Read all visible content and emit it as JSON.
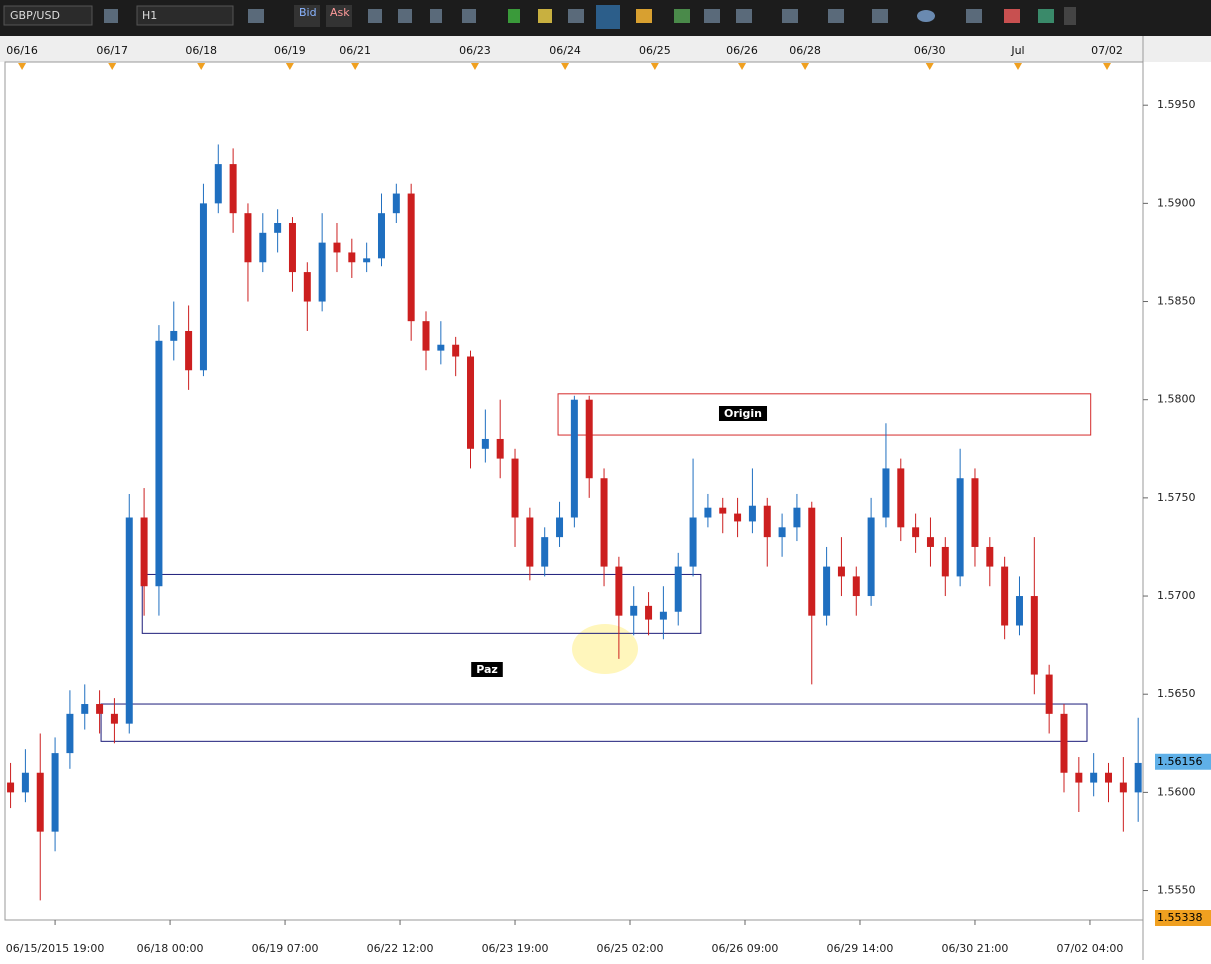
{
  "toolbar": {
    "symbol": "GBP/USD",
    "timeframe": "H1",
    "bid": "Bid",
    "ask": "Ask"
  },
  "chart_data": {
    "type": "candlestick",
    "up_color": "#1f6fc0",
    "down_color": "#cc1f1f",
    "xlim": [
      -13.5,
      293.3
    ],
    "ylim": [
      1.5535,
      1.5972
    ],
    "yticks": [
      {
        "value": 1.555,
        "label": "1.5550"
      },
      {
        "value": 1.56,
        "label": "1.5600"
      },
      {
        "value": 1.565,
        "label": "1.5650"
      },
      {
        "value": 1.57,
        "label": "1.5700"
      },
      {
        "value": 1.575,
        "label": "1.5750"
      },
      {
        "value": 1.58,
        "label": "1.5800"
      },
      {
        "value": 1.585,
        "label": "1.5850"
      },
      {
        "value": 1.59,
        "label": "1.5900"
      },
      {
        "value": 1.595,
        "label": "1.5950"
      }
    ],
    "xticks": [
      {
        "value": 0,
        "label": "06/15/2015 19:00"
      },
      {
        "value": 31,
        "label": "06/18 00:00"
      },
      {
        "value": 62,
        "label": "06/19 07:00"
      },
      {
        "value": 93,
        "label": "06/22 12:00"
      },
      {
        "value": 124,
        "label": "06/23 19:00"
      },
      {
        "value": 155,
        "label": "06/25 02:00"
      },
      {
        "value": 186,
        "label": "06/26 09:00"
      },
      {
        "value": 217,
        "label": "06/29 14:00"
      },
      {
        "value": 248,
        "label": "06/30 21:00"
      },
      {
        "value": 279,
        "label": "07/02 04:00"
      }
    ],
    "day_ticks": [
      {
        "value": -8.9,
        "label": "06/16"
      },
      {
        "value": 15.4,
        "label": "06/17"
      },
      {
        "value": 39.4,
        "label": "06/18"
      },
      {
        "value": 63.3,
        "label": "06/19"
      },
      {
        "value": 80.9,
        "label": "06/21"
      },
      {
        "value": 113.2,
        "label": "06/23"
      },
      {
        "value": 137.5,
        "label": "06/24"
      },
      {
        "value": 161.7,
        "label": "06/25"
      },
      {
        "value": 185.2,
        "label": "06/26"
      },
      {
        "value": 202.2,
        "label": "06/28"
      },
      {
        "value": 235.8,
        "label": "06/30"
      },
      {
        "value": 259.6,
        "label": "Jul"
      },
      {
        "value": 283.6,
        "label": "07/02"
      }
    ],
    "x": [
      -12,
      -8,
      -4,
      0,
      4,
      8,
      12,
      16,
      20,
      24,
      28,
      32,
      36,
      40,
      44,
      48,
      52,
      56,
      60,
      64,
      68,
      72,
      76,
      80,
      84,
      88,
      92,
      96,
      100,
      104,
      108,
      112,
      116,
      120,
      124,
      128,
      132,
      136,
      140,
      144,
      148,
      152,
      156,
      160,
      164,
      168,
      172,
      176,
      180,
      184,
      188,
      192,
      196,
      200,
      204,
      208,
      212,
      216,
      220,
      224,
      228,
      232,
      236,
      240,
      244,
      248,
      252,
      256,
      260,
      264,
      268,
      272,
      276,
      280,
      284,
      288,
      292
    ],
    "open": [
      1.5605,
      1.56,
      1.561,
      1.558,
      1.562,
      1.564,
      1.5645,
      1.564,
      1.5635,
      1.574,
      1.5705,
      1.583,
      1.5835,
      1.5815,
      1.59,
      1.592,
      1.5895,
      1.587,
      1.5885,
      1.589,
      1.5865,
      1.585,
      1.588,
      1.5875,
      1.587,
      1.5872,
      1.5895,
      1.5905,
      1.584,
      1.5825,
      1.5828,
      1.5822,
      1.5775,
      1.578,
      1.577,
      1.574,
      1.5715,
      1.573,
      1.574,
      1.58,
      1.576,
      1.5715,
      1.569,
      1.5695,
      1.5688,
      1.5692,
      1.5715,
      1.574,
      1.5745,
      1.5742,
      1.5738,
      1.5746,
      1.573,
      1.5735,
      1.5745,
      1.569,
      1.5715,
      1.571,
      1.57,
      1.574,
      1.5765,
      1.5735,
      1.573,
      1.5725,
      1.571,
      1.576,
      1.5725,
      1.5715,
      1.5685,
      1.57,
      1.566,
      1.564,
      1.561,
      1.5605,
      1.561,
      1.5605,
      1.56
    ],
    "high": [
      1.5615,
      1.5622,
      1.563,
      1.5628,
      1.5652,
      1.5655,
      1.5652,
      1.5648,
      1.5752,
      1.5755,
      1.5838,
      1.585,
      1.5848,
      1.591,
      1.593,
      1.5928,
      1.59,
      1.5895,
      1.5897,
      1.5893,
      1.587,
      1.5895,
      1.589,
      1.5882,
      1.588,
      1.5905,
      1.591,
      1.591,
      1.5845,
      1.584,
      1.5832,
      1.5825,
      1.5795,
      1.58,
      1.5775,
      1.5745,
      1.5735,
      1.5748,
      1.5802,
      1.5802,
      1.5765,
      1.572,
      1.5705,
      1.5702,
      1.5705,
      1.5722,
      1.577,
      1.5752,
      1.575,
      1.575,
      1.5765,
      1.575,
      1.5742,
      1.5752,
      1.5748,
      1.5725,
      1.573,
      1.5715,
      1.575,
      1.5788,
      1.577,
      1.5742,
      1.574,
      1.573,
      1.5775,
      1.5765,
      1.573,
      1.572,
      1.571,
      1.573,
      1.5665,
      1.5645,
      1.5618,
      1.562,
      1.5615,
      1.5618,
      1.5638
    ],
    "low": [
      1.5592,
      1.5595,
      1.5545,
      1.557,
      1.5612,
      1.5632,
      1.563,
      1.5625,
      1.563,
      1.569,
      1.569,
      1.582,
      1.5805,
      1.5812,
      1.5895,
      1.5885,
      1.585,
      1.5865,
      1.5875,
      1.5855,
      1.5835,
      1.5845,
      1.5865,
      1.5862,
      1.5865,
      1.5868,
      1.589,
      1.583,
      1.5815,
      1.5818,
      1.5812,
      1.5765,
      1.5768,
      1.576,
      1.5725,
      1.5708,
      1.571,
      1.5725,
      1.5735,
      1.575,
      1.5705,
      1.5668,
      1.568,
      1.568,
      1.5678,
      1.5685,
      1.571,
      1.5735,
      1.5732,
      1.573,
      1.5732,
      1.5715,
      1.572,
      1.5728,
      1.5655,
      1.5685,
      1.57,
      1.569,
      1.5695,
      1.5735,
      1.5728,
      1.5722,
      1.5715,
      1.57,
      1.5705,
      1.5715,
      1.5705,
      1.5678,
      1.568,
      1.565,
      1.563,
      1.56,
      1.559,
      1.5598,
      1.5595,
      1.558,
      1.5585
    ],
    "close": [
      1.56,
      1.561,
      1.558,
      1.562,
      1.564,
      1.5645,
      1.564,
      1.5635,
      1.574,
      1.5705,
      1.583,
      1.5835,
      1.5815,
      1.59,
      1.592,
      1.5895,
      1.587,
      1.5885,
      1.589,
      1.5865,
      1.585,
      1.588,
      1.5875,
      1.587,
      1.5872,
      1.5895,
      1.5905,
      1.584,
      1.5825,
      1.5828,
      1.5822,
      1.5775,
      1.578,
      1.577,
      1.574,
      1.5715,
      1.573,
      1.574,
      1.58,
      1.576,
      1.5715,
      1.569,
      1.5695,
      1.5688,
      1.5692,
      1.5715,
      1.574,
      1.5745,
      1.5742,
      1.5738,
      1.5746,
      1.573,
      1.5735,
      1.5745,
      1.569,
      1.5715,
      1.571,
      1.57,
      1.574,
      1.5765,
      1.5735,
      1.573,
      1.5725,
      1.571,
      1.576,
      1.5725,
      1.5715,
      1.5685,
      1.57,
      1.566,
      1.564,
      1.561,
      1.5605,
      1.561,
      1.5605,
      1.56,
      1.5615
    ],
    "zones": [
      {
        "x": [
          135.6,
          279.2
        ],
        "y": [
          1.5782,
          1.5803
        ],
        "color": "#d42a2a"
      },
      {
        "x": [
          23.5,
          174.1
        ],
        "y": [
          1.5681,
          1.5711
        ],
        "color": "#1c1c7a"
      },
      {
        "x": [
          12.4,
          278.2
        ],
        "y": [
          1.5626,
          1.5645
        ],
        "color": "#1c1c7a"
      }
    ],
    "annotations": [
      "Origin",
      "Paz"
    ],
    "current_price": 1.56156,
    "low_marker": 1.55338
  }
}
